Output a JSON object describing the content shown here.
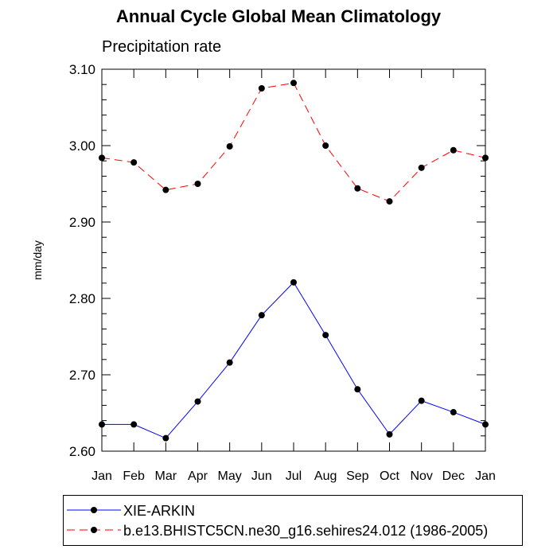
{
  "title": "Annual Cycle Global Mean Climatology",
  "subtitle": "Precipitation rate",
  "chart_data": {
    "type": "line",
    "title": "Annual Cycle Global Mean Climatology",
    "subtitle": "Precipitation rate",
    "xlabel": "",
    "ylabel": "mm/day",
    "categories": [
      "Jan",
      "Feb",
      "Mar",
      "Apr",
      "May",
      "Jun",
      "Jul",
      "Aug",
      "Sep",
      "Oct",
      "Nov",
      "Dec",
      "Jan"
    ],
    "ylim": [
      2.6,
      3.1
    ],
    "yticks": [
      2.6,
      2.7,
      2.8,
      2.9,
      3.0,
      3.1
    ],
    "ytick_labels": [
      "2.60",
      "2.70",
      "2.80",
      "2.90",
      "3.00",
      "3.10"
    ],
    "grid": false,
    "legend_position": "bottom",
    "series": [
      {
        "name": "XIE-ARKIN",
        "color": "#0000ff",
        "style": "solid",
        "marker": "filled-circle",
        "values": [
          2.635,
          2.635,
          2.617,
          2.665,
          2.716,
          2.778,
          2.821,
          2.752,
          2.681,
          2.622,
          2.666,
          2.651,
          2.635
        ]
      },
      {
        "name": "b.e13.BHISTC5CN.ne30_g16.sehires24.012 (1986-2005)",
        "color": "#ff0000",
        "style": "dashed",
        "marker": "filled-circle",
        "values": [
          2.984,
          2.978,
          2.942,
          2.95,
          2.999,
          3.075,
          3.082,
          3.0,
          2.944,
          2.927,
          2.971,
          2.994,
          2.984
        ]
      }
    ]
  }
}
